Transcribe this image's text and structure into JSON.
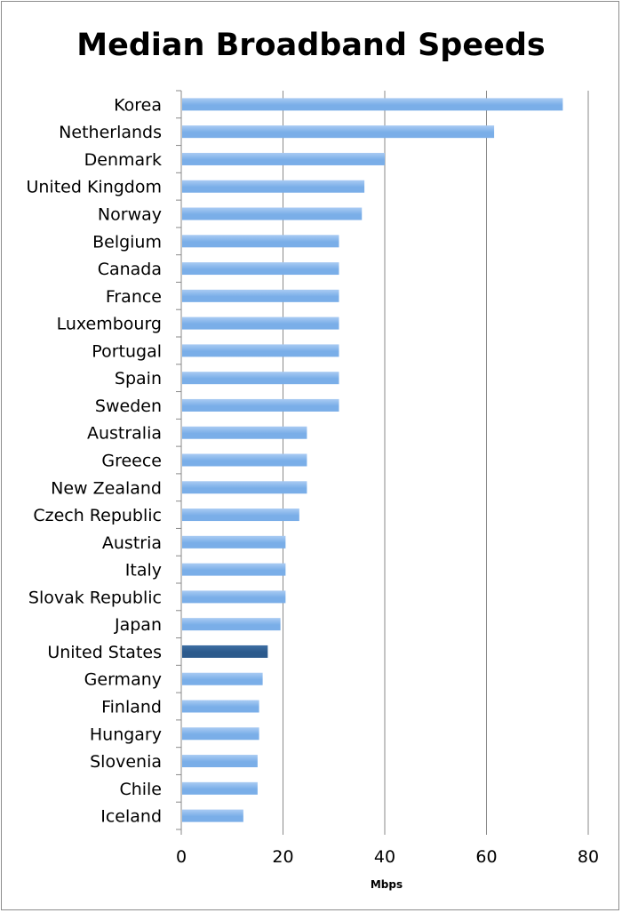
{
  "chart_data": {
    "type": "bar",
    "orientation": "horizontal",
    "title": "Median Broadband Speeds",
    "xlabel": "Mbps",
    "ylabel": "",
    "xlim": [
      0,
      80
    ],
    "x_ticks": [
      0,
      20,
      40,
      60,
      80
    ],
    "grid": true,
    "legend": "none",
    "bar_color": "#7aaee8",
    "highlight_color": "#2c5a8c",
    "highlight_category": "United States",
    "categories": [
      "Korea",
      "Netherlands",
      "Denmark",
      "United Kingdom",
      "Norway",
      "Belgium",
      "Canada",
      "France",
      "Luxembourg",
      "Portugal",
      "Spain",
      "Sweden",
      "Australia",
      "Greece",
      "New Zealand",
      "Czech Republic",
      "Austria",
      "Italy",
      "Slovak Republic",
      "Japan",
      "United States",
      "Germany",
      "Finland",
      "Hungary",
      "Slovenia",
      "Chile",
      "Iceland"
    ],
    "values": [
      75,
      61.5,
      40,
      36,
      35.5,
      31,
      31,
      31,
      31,
      31,
      31,
      31,
      24.7,
      24.7,
      24.7,
      23.2,
      20.5,
      20.5,
      20.5,
      19.5,
      17,
      16,
      15.3,
      15.3,
      15,
      15,
      12.2
    ]
  }
}
